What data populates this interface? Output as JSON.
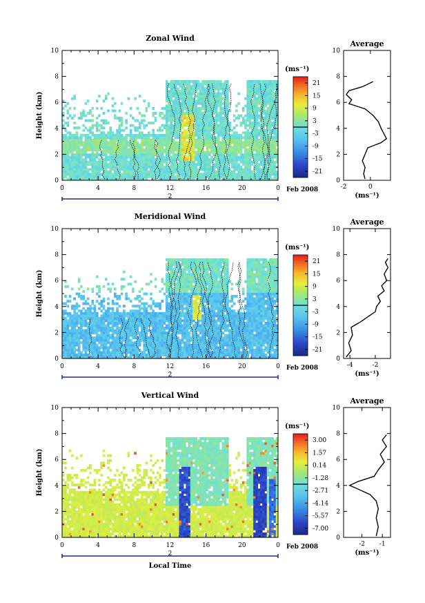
{
  "figure": {
    "xlabel": "Local Time",
    "date_label": "Feb 2008",
    "day_label": "2",
    "colorbar_unit": "(ms⁻¹)",
    "profile_title": "Average",
    "profile_xlabel": "(ms⁻¹)"
  },
  "chart_data": [
    {
      "id": "zonal",
      "type": "heatmap",
      "title": "Zonal Wind",
      "ylabel": "Height (km)",
      "xlabel": "",
      "xlim": [
        0,
        24
      ],
      "ylim": [
        0,
        10
      ],
      "x_ticks": [
        "0",
        "4",
        "8",
        "12",
        "16",
        "20",
        "0"
      ],
      "y_ticks": [
        "0",
        "2",
        "4",
        "6",
        "8",
        "10"
      ],
      "colorbar_ticks": [
        "21",
        "15",
        "9",
        "3",
        "-3",
        "-9",
        "-15",
        "-21"
      ],
      "colorbar_range": [
        -24,
        24
      ],
      "profile": {
        "title": "Average",
        "xlim": [
          -2,
          1.5
        ],
        "x_ticks": [
          "-2",
          "0"
        ],
        "ylim": [
          0,
          10
        ],
        "y_ticks": [
          "0",
          "2",
          "4",
          "6",
          "8",
          "10"
        ],
        "points": [
          [
            -0.4,
            0.1
          ],
          [
            -0.5,
            0.5
          ],
          [
            -0.4,
            1.0
          ],
          [
            -0.6,
            1.5
          ],
          [
            -0.4,
            2.0
          ],
          [
            -0.2,
            2.5
          ],
          [
            0.8,
            2.9
          ],
          [
            1.2,
            3.2
          ],
          [
            1.0,
            3.6
          ],
          [
            0.8,
            4.0
          ],
          [
            0.6,
            4.5
          ],
          [
            0.2,
            5.0
          ],
          [
            -0.4,
            5.5
          ],
          [
            -1.6,
            5.9
          ],
          [
            -1.4,
            6.2
          ],
          [
            -1.8,
            6.6
          ],
          [
            -1.6,
            6.9
          ],
          [
            -0.6,
            7.2
          ],
          [
            0.2,
            7.6
          ]
        ]
      }
    },
    {
      "id": "meridional",
      "type": "heatmap",
      "title": "Meridional Wind",
      "ylabel": "Height (km)",
      "xlabel": "",
      "xlim": [
        0,
        24
      ],
      "ylim": [
        0,
        10
      ],
      "x_ticks": [
        "0",
        "4",
        "8",
        "12",
        "16",
        "20",
        "0"
      ],
      "y_ticks": [
        "0",
        "2",
        "4",
        "6",
        "8",
        "10"
      ],
      "colorbar_ticks": [
        "21",
        "15",
        "9",
        "3",
        "-3",
        "-9",
        "-15",
        "-21"
      ],
      "colorbar_range": [
        -24,
        24
      ],
      "profile": {
        "title": "Average",
        "xlim": [
          -4.5,
          -0.8
        ],
        "x_ticks": [
          "-4",
          "-2"
        ],
        "ylim": [
          0,
          10
        ],
        "y_ticks": [
          "0",
          "2",
          "4",
          "6",
          "8",
          "10"
        ],
        "points": [
          [
            -4.3,
            0.1
          ],
          [
            -3.9,
            0.6
          ],
          [
            -4.1,
            1.2
          ],
          [
            -3.8,
            1.8
          ],
          [
            -3.9,
            2.4
          ],
          [
            -3.2,
            2.8
          ],
          [
            -2.6,
            3.2
          ],
          [
            -2.0,
            3.6
          ],
          [
            -1.9,
            4.0
          ],
          [
            -1.6,
            4.4
          ],
          [
            -1.8,
            4.8
          ],
          [
            -1.3,
            5.2
          ],
          [
            -1.5,
            5.6
          ],
          [
            -1.1,
            6.0
          ],
          [
            -1.3,
            6.5
          ],
          [
            -1.0,
            7.0
          ],
          [
            -1.2,
            7.4
          ],
          [
            -1.0,
            7.7
          ]
        ]
      }
    },
    {
      "id": "vertical",
      "type": "heatmap",
      "title": "Vertical Wind",
      "ylabel": "Height (km)",
      "xlabel": "Local Time",
      "xlim": [
        0,
        24
      ],
      "ylim": [
        0,
        10
      ],
      "x_ticks": [
        "0",
        "4",
        "8",
        "12",
        "16",
        "20",
        "0"
      ],
      "y_ticks": [
        "0",
        "2",
        "4",
        "6",
        "8",
        "10"
      ],
      "colorbar_ticks": [
        "3.00",
        "1.57",
        "0.14",
        "-1.28",
        "-2.71",
        "-4.14",
        "-5.57",
        "-7.00"
      ],
      "colorbar_range": [
        -7.0,
        3.0
      ],
      "profile": {
        "title": "Average",
        "xlim": [
          -2.9,
          -0.6
        ],
        "x_ticks": [
          "-2",
          "-1"
        ],
        "ylim": [
          0,
          10
        ],
        "y_ticks": [
          "0",
          "2",
          "4",
          "6",
          "8",
          "10"
        ],
        "points": [
          [
            -1.3,
            0.1
          ],
          [
            -1.2,
            0.8
          ],
          [
            -1.3,
            1.5
          ],
          [
            -1.2,
            2.2
          ],
          [
            -1.3,
            2.8
          ],
          [
            -1.6,
            3.3
          ],
          [
            -2.3,
            3.8
          ],
          [
            -2.6,
            4.0
          ],
          [
            -2.2,
            4.3
          ],
          [
            -1.4,
            4.7
          ],
          [
            -1.2,
            5.2
          ],
          [
            -0.9,
            5.8
          ],
          [
            -1.1,
            6.4
          ],
          [
            -0.8,
            7.0
          ],
          [
            -1.0,
            7.5
          ],
          [
            -0.8,
            7.9
          ]
        ]
      }
    }
  ]
}
